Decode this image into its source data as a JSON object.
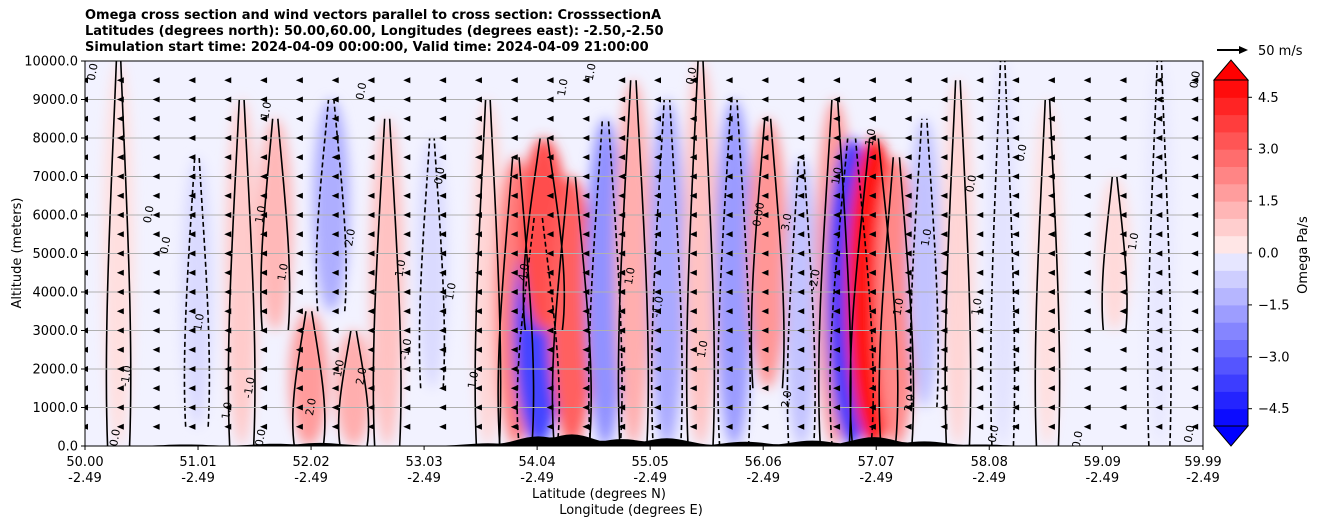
{
  "chart_data": {
    "type": "heatmap",
    "title_lines": [
      "Omega cross section and wind vectors parallel to cross section: CrosssectionA",
      "Latitudes (degrees north): 50.00,60.00, Longitudes (degrees east): -2.50,-2.50",
      "Simulation start time: 2024-04-09 00:00:00, Valid time: 2024-04-09 21:00:00"
    ],
    "ylabel": "Altitude (meters)",
    "xlabel_lat": "Latitude (degrees N)",
    "xlabel_lon": "Longitude (degrees E)",
    "ylim": [
      0,
      10000
    ],
    "xlim": [
      50.0,
      59.99
    ],
    "y_ticks": [
      {
        "value": 0,
        "label": "0.0"
      },
      {
        "value": 1000,
        "label": "1000.0"
      },
      {
        "value": 2000,
        "label": "2000.0"
      },
      {
        "value": 3000,
        "label": "3000.0"
      },
      {
        "value": 4000,
        "label": "4000.0"
      },
      {
        "value": 5000,
        "label": "5000.0"
      },
      {
        "value": 6000,
        "label": "6000.0"
      },
      {
        "value": 7000,
        "label": "7000.0"
      },
      {
        "value": 8000,
        "label": "8000.0"
      },
      {
        "value": 9000,
        "label": "9000.0"
      },
      {
        "value": 10000,
        "label": "10000.0"
      }
    ],
    "x_ticks": [
      {
        "lat": 50.0,
        "lat_label": "50.00",
        "lon_label": "-2.49"
      },
      {
        "lat": 51.01,
        "lat_label": "51.01",
        "lon_label": "-2.49"
      },
      {
        "lat": 52.02,
        "lat_label": "52.02",
        "lon_label": "-2.49"
      },
      {
        "lat": 53.03,
        "lat_label": "53.03",
        "lon_label": "-2.49"
      },
      {
        "lat": 54.04,
        "lat_label": "54.04",
        "lon_label": "-2.49"
      },
      {
        "lat": 55.05,
        "lat_label": "55.05",
        "lon_label": "-2.49"
      },
      {
        "lat": 56.06,
        "lat_label": "56.06",
        "lon_label": "-2.49"
      },
      {
        "lat": 57.07,
        "lat_label": "57.07",
        "lon_label": "-2.49"
      },
      {
        "lat": 58.08,
        "lat_label": "58.08",
        "lon_label": "-2.49"
      },
      {
        "lat": 59.09,
        "lat_label": "59.09",
        "lon_label": "-2.49"
      },
      {
        "lat": 59.99,
        "lat_label": "59.99",
        "lon_label": "-2.49"
      }
    ],
    "colorbar": {
      "label": "Omega Pa/s",
      "range": [
        -5,
        5
      ],
      "ticks": [
        {
          "value": 4.5,
          "label": "4.5"
        },
        {
          "value": 3.0,
          "label": "3.0"
        },
        {
          "value": 1.5,
          "label": "1.5"
        },
        {
          "value": 0.0,
          "label": "0.0"
        },
        {
          "value": -1.5,
          "label": "−1.5"
        },
        {
          "value": -3.0,
          "label": "−3.0"
        },
        {
          "value": -4.5,
          "label": "−4.5"
        }
      ],
      "extend": "both"
    },
    "wind_reference": {
      "label": "50 m/s"
    },
    "omega_cells": [
      {
        "lat": 50.3,
        "z_min": 0,
        "z_max": 10000,
        "value": 0.4
      },
      {
        "lat": 51.0,
        "z_min": 500,
        "z_max": 7500,
        "value": -0.5
      },
      {
        "lat": 51.4,
        "z_min": 0,
        "z_max": 9000,
        "value": 0.8
      },
      {
        "lat": 51.7,
        "z_min": 3000,
        "z_max": 8500,
        "value": 1.2
      },
      {
        "lat": 52.0,
        "z_min": 0,
        "z_max": 3500,
        "value": 1.8
      },
      {
        "lat": 52.2,
        "z_min": 3500,
        "z_max": 9000,
        "value": -1.4
      },
      {
        "lat": 52.4,
        "z_min": 0,
        "z_max": 3000,
        "value": 1.4
      },
      {
        "lat": 52.7,
        "z_min": 0,
        "z_max": 8500,
        "value": 1.0
      },
      {
        "lat": 53.1,
        "z_min": 1500,
        "z_max": 8000,
        "value": -0.5
      },
      {
        "lat": 53.6,
        "z_min": 0,
        "z_max": 9000,
        "value": 0.6
      },
      {
        "lat": 53.85,
        "z_min": 0,
        "z_max": 7500,
        "value": 2.4
      },
      {
        "lat": 54.05,
        "z_min": 0,
        "z_max": 6000,
        "value": -3.6
      },
      {
        "lat": 54.1,
        "z_min": 3000,
        "z_max": 8000,
        "value": 3.4
      },
      {
        "lat": 54.35,
        "z_min": 0,
        "z_max": 7000,
        "value": 3.0
      },
      {
        "lat": 54.65,
        "z_min": 0,
        "z_max": 8500,
        "value": -2.0
      },
      {
        "lat": 54.9,
        "z_min": 0,
        "z_max": 9500,
        "value": 1.4
      },
      {
        "lat": 55.2,
        "z_min": 0,
        "z_max": 9000,
        "value": -1.5
      },
      {
        "lat": 55.5,
        "z_min": 0,
        "z_max": 10000,
        "value": 1.0
      },
      {
        "lat": 55.8,
        "z_min": 0,
        "z_max": 9000,
        "value": -1.8
      },
      {
        "lat": 56.1,
        "z_min": 1500,
        "z_max": 8500,
        "value": 1.9
      },
      {
        "lat": 56.4,
        "z_min": 0,
        "z_max": 7500,
        "value": -1.0
      },
      {
        "lat": 56.7,
        "z_min": 0,
        "z_max": 9000,
        "value": 1.8
      },
      {
        "lat": 56.85,
        "z_min": 0,
        "z_max": 8000,
        "value": -3.8
      },
      {
        "lat": 57.05,
        "z_min": 0,
        "z_max": 8000,
        "value": 4.6
      },
      {
        "lat": 57.25,
        "z_min": 0,
        "z_max": 7500,
        "value": 2.2
      },
      {
        "lat": 57.5,
        "z_min": 1000,
        "z_max": 8500,
        "value": -1.0
      },
      {
        "lat": 57.8,
        "z_min": 0,
        "z_max": 9500,
        "value": 0.6
      },
      {
        "lat": 58.2,
        "z_min": 0,
        "z_max": 10000,
        "value": -0.3
      },
      {
        "lat": 58.6,
        "z_min": 0,
        "z_max": 9000,
        "value": 0.4
      },
      {
        "lat": 59.2,
        "z_min": 3000,
        "z_max": 7000,
        "value": 0.5
      },
      {
        "lat": 59.6,
        "z_min": 0,
        "z_max": 10000,
        "value": -0.2
      }
    ],
    "contour_labels": [
      {
        "lat": 50.1,
        "z": 9700,
        "text": "0.0"
      },
      {
        "lat": 50.4,
        "z": 1800,
        "text": "-1.0"
      },
      {
        "lat": 50.3,
        "z": 200,
        "text": "0.0"
      },
      {
        "lat": 50.6,
        "z": 6000,
        "text": "0.0"
      },
      {
        "lat": 50.75,
        "z": 5200,
        "text": "0.0"
      },
      {
        "lat": 51.05,
        "z": 3200,
        "text": "1.0"
      },
      {
        "lat": 51.3,
        "z": 900,
        "text": "1.0"
      },
      {
        "lat": 51.5,
        "z": 1500,
        "text": "-1.0"
      },
      {
        "lat": 51.65,
        "z": 8700,
        "text": "1.0"
      },
      {
        "lat": 51.6,
        "z": 6000,
        "text": "1.0"
      },
      {
        "lat": 51.6,
        "z": 200,
        "text": "0.0"
      },
      {
        "lat": 51.8,
        "z": 4500,
        "text": "1.0"
      },
      {
        "lat": 52.05,
        "z": 1000,
        "text": "2.0"
      },
      {
        "lat": 52.3,
        "z": 2000,
        "text": "1.0"
      },
      {
        "lat": 52.4,
        "z": 5400,
        "text": "2.0"
      },
      {
        "lat": 52.5,
        "z": 1800,
        "text": "2.0"
      },
      {
        "lat": 52.5,
        "z": 9200,
        "text": "0.0"
      },
      {
        "lat": 52.85,
        "z": 4600,
        "text": "1.0"
      },
      {
        "lat": 52.9,
        "z": 2500,
        "text": "-1.0"
      },
      {
        "lat": 53.2,
        "z": 7000,
        "text": "0.0"
      },
      {
        "lat": 53.3,
        "z": 4000,
        "text": "1.0"
      },
      {
        "lat": 53.5,
        "z": 1700,
        "text": "1.0"
      },
      {
        "lat": 53.95,
        "z": 4500,
        "text": "4.0"
      },
      {
        "lat": 54.3,
        "z": 9300,
        "text": "1.0"
      },
      {
        "lat": 54.55,
        "z": 9700,
        "text": "1.0"
      },
      {
        "lat": 54.9,
        "z": 4400,
        "text": "1.0"
      },
      {
        "lat": 55.15,
        "z": 3600,
        "text": "-1.0"
      },
      {
        "lat": 55.45,
        "z": 9600,
        "text": "0.0"
      },
      {
        "lat": 55.55,
        "z": 2500,
        "text": "1.0"
      },
      {
        "lat": 56.05,
        "z": 6000,
        "text": "0.00"
      },
      {
        "lat": 56.3,
        "z": 5800,
        "text": "3.0"
      },
      {
        "lat": 56.3,
        "z": 1200,
        "text": "2.0"
      },
      {
        "lat": 56.55,
        "z": 4300,
        "text": "-2.0"
      },
      {
        "lat": 56.75,
        "z": 7000,
        "text": "1.0"
      },
      {
        "lat": 57.05,
        "z": 8000,
        "text": "1.0"
      },
      {
        "lat": 57.3,
        "z": 3600,
        "text": "1.0"
      },
      {
        "lat": 57.4,
        "z": 1100,
        "text": "2.0"
      },
      {
        "lat": 57.55,
        "z": 5400,
        "text": "1.0"
      },
      {
        "lat": 57.95,
        "z": 6800,
        "text": "0.0"
      },
      {
        "lat": 58.0,
        "z": 3600,
        "text": "1.0"
      },
      {
        "lat": 58.15,
        "z": 300,
        "text": "0.0"
      },
      {
        "lat": 58.4,
        "z": 7600,
        "text": "0.0"
      },
      {
        "lat": 58.9,
        "z": 150,
        "text": "0.0"
      },
      {
        "lat": 59.4,
        "z": 5300,
        "text": "1.0"
      },
      {
        "lat": 59.9,
        "z": 300,
        "text": "0.0"
      },
      {
        "lat": 59.95,
        "z": 9500,
        "text": "0.0"
      }
    ]
  }
}
